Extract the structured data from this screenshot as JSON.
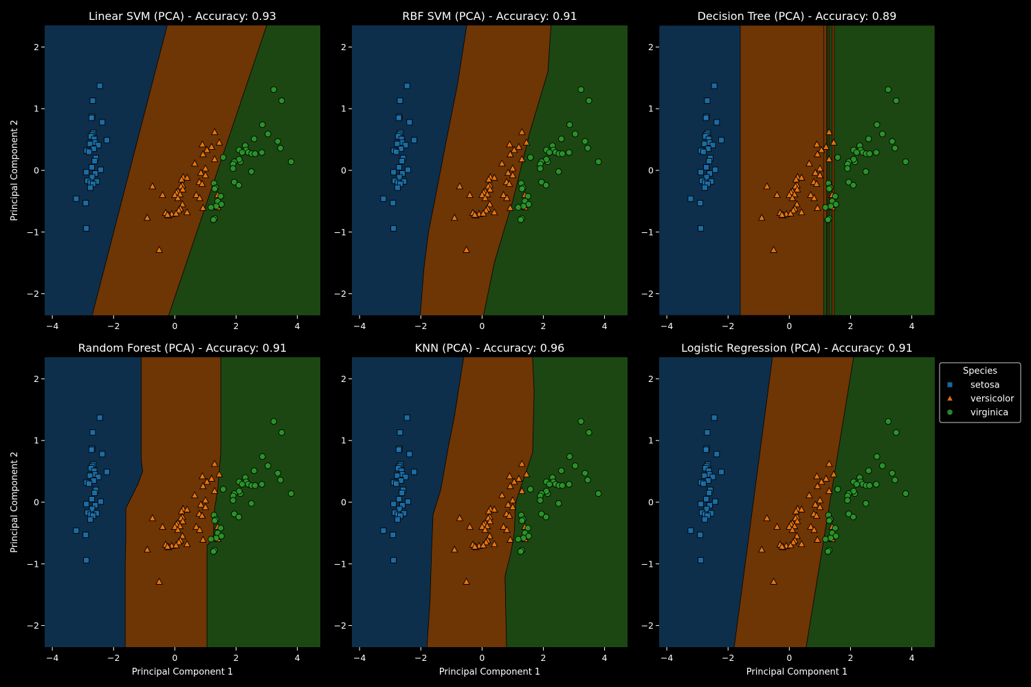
{
  "legend": {
    "title": "Species",
    "entries": [
      {
        "name": "setosa",
        "marker": "square",
        "color": "#1f77b4"
      },
      {
        "name": "versicolor",
        "marker": "triangle",
        "color": "#ff7f0e"
      },
      {
        "name": "virginica",
        "marker": "circle",
        "color": "#2ca02c"
      }
    ]
  },
  "colors": {
    "background": "#000000",
    "region_setosa": "#0d2f4b",
    "region_versicolor": "#6e3505",
    "region_virginica": "#1c4713",
    "point_setosa": "#1f77b4",
    "point_versicolor": "#ff7f0e",
    "point_virginica": "#2ca02c"
  },
  "chart_data": [
    {
      "type": "scatter",
      "title": "Linear SVM (PCA) - Accuracy: 0.93",
      "xlabel": "",
      "ylabel": "Principal Component 2",
      "xlim": [
        -4.25,
        4.75
      ],
      "ylim": [
        -2.35,
        2.35
      ],
      "xticks": [
        -4,
        -2,
        0,
        2,
        4
      ],
      "yticks": [
        -2,
        -1,
        0,
        1,
        2
      ],
      "decision_boundaries": {
        "setosa_versicolor": [
          [
            -2.7,
            -2.35
          ],
          [
            -0.25,
            2.35
          ]
        ],
        "versicolor_virginica": [
          [
            -0.2,
            -2.35
          ],
          [
            3,
            2.35
          ]
        ]
      }
    },
    {
      "type": "scatter",
      "title": "RBF SVM (PCA) - Accuracy: 0.91",
      "xlabel": "",
      "ylabel": "",
      "xlim": [
        -4.25,
        4.75
      ],
      "ylim": [
        -2.35,
        2.35
      ],
      "xticks": [
        -4,
        -2,
        0,
        2,
        4
      ],
      "yticks": [
        -2,
        -1,
        0,
        1,
        2
      ],
      "decision_boundaries": {
        "setosa_versicolor": [
          [
            -2.02,
            -2.35
          ],
          [
            -1.9,
            -1.6
          ],
          [
            -1.75,
            -1
          ],
          [
            -1.55,
            -0.5
          ],
          [
            -1.2,
            0.4
          ],
          [
            -0.8,
            1.4
          ],
          [
            -0.5,
            2.35
          ]
        ],
        "versicolor_virginica": [
          [
            0.05,
            -2.35
          ],
          [
            0.4,
            -1.5
          ],
          [
            1,
            -0.5
          ],
          [
            1.55,
            0.6
          ],
          [
            2.15,
            1.6
          ],
          [
            2.25,
            2.35
          ]
        ]
      }
    },
    {
      "type": "scatter",
      "title": "Decision Tree (PCA) - Accuracy: 0.89",
      "xlabel": "",
      "ylabel": "",
      "xlim": [
        -4.25,
        4.75
      ],
      "ylim": [
        -2.35,
        2.35
      ],
      "xticks": [
        -4,
        -2,
        0,
        2,
        4
      ],
      "yticks": [
        -2,
        -1,
        0,
        1,
        2
      ],
      "regions": [
        {
          "class": "setosa",
          "x": [
            -4.25,
            -1.6
          ],
          "y": [
            -2.35,
            2.35
          ]
        },
        {
          "class": "versicolor",
          "x": [
            -1.6,
            1.12
          ],
          "y": [
            -2.35,
            2.35
          ]
        },
        {
          "class": "virginica",
          "x": [
            1.12,
            1.22
          ],
          "y": [
            -2.35,
            -0.8
          ]
        },
        {
          "class": "versicolor",
          "x": [
            1.12,
            1.22
          ],
          "y": [
            -0.8,
            2.35
          ]
        },
        {
          "class": "virginica",
          "x": [
            1.22,
            1.26
          ],
          "y": [
            -2.35,
            2.35
          ]
        },
        {
          "class": "versicolor",
          "x": [
            1.26,
            1.3
          ],
          "y": [
            -2.35,
            2.35
          ]
        },
        {
          "class": "virginica",
          "x": [
            1.3,
            1.4
          ],
          "y": [
            -2.35,
            2.35
          ]
        },
        {
          "class": "versicolor",
          "x": [
            1.4,
            1.47
          ],
          "y": [
            -2.35,
            2.35
          ]
        },
        {
          "class": "virginica",
          "x": [
            1.47,
            4.75
          ],
          "y": [
            -2.35,
            2.35
          ]
        }
      ]
    },
    {
      "type": "scatter",
      "title": "Random Forest (PCA) - Accuracy: 0.91",
      "xlabel": "Principal Component 1",
      "ylabel": "Principal Component 2",
      "xlim": [
        -4.25,
        4.75
      ],
      "ylim": [
        -2.35,
        2.35
      ],
      "xticks": [
        -4,
        -2,
        0,
        2,
        4
      ],
      "yticks": [
        -2,
        -1,
        0,
        1,
        2
      ],
      "decision_boundaries": {
        "setosa_versicolor": [
          [
            -1.62,
            -2.35
          ],
          [
            -1.62,
            -1
          ],
          [
            -1.6,
            -0.6
          ],
          [
            -1.6,
            -0.1
          ],
          [
            -1.4,
            0.1
          ],
          [
            -1.2,
            0.3
          ],
          [
            -1.05,
            0.5
          ],
          [
            -1.1,
            0.7
          ],
          [
            -1.1,
            1.6
          ],
          [
            -1.1,
            2.35
          ]
        ],
        "versicolor_virginica": [
          [
            1.05,
            -2.35
          ],
          [
            1.05,
            -0.7
          ],
          [
            1.25,
            -0.6
          ],
          [
            1.3,
            -0.1
          ],
          [
            1.4,
            0.2
          ],
          [
            1.45,
            0.5
          ],
          [
            1.5,
            0.8
          ],
          [
            1.5,
            2.35
          ]
        ]
      }
    },
    {
      "type": "scatter",
      "title": "KNN (PCA) - Accuracy: 0.96",
      "xlabel": "Principal Component 1",
      "ylabel": "",
      "xlim": [
        -4.25,
        4.75
      ],
      "ylim": [
        -2.35,
        2.35
      ],
      "xticks": [
        -4,
        -2,
        0,
        2,
        4
      ],
      "yticks": [
        -2,
        -1,
        0,
        1,
        2
      ],
      "decision_boundaries": {
        "setosa_versicolor": [
          [
            -1.8,
            -2.35
          ],
          [
            -1.7,
            -1.6
          ],
          [
            -1.65,
            -0.8
          ],
          [
            -1.6,
            -0.2
          ],
          [
            -1.35,
            0.2
          ],
          [
            -1.1,
            0.9
          ],
          [
            -0.9,
            1.4
          ],
          [
            -0.6,
            2.35
          ]
        ],
        "versicolor_virginica": [
          [
            0.8,
            -2.35
          ],
          [
            0.75,
            -1.2
          ],
          [
            0.95,
            -0.8
          ],
          [
            1.05,
            -0.5
          ],
          [
            1.1,
            0
          ],
          [
            1.3,
            0.3
          ],
          [
            1.65,
            0.8
          ],
          [
            1.7,
            1.8
          ],
          [
            1.65,
            2.35
          ]
        ]
      }
    },
    {
      "type": "scatter",
      "title": "Logistic Regression (PCA) - Accuracy: 0.91",
      "xlabel": "Principal Component 1",
      "ylabel": "",
      "xlim": [
        -4.25,
        4.75
      ],
      "ylim": [
        -2.35,
        2.35
      ],
      "xticks": [
        -4,
        -2,
        0,
        2,
        4
      ],
      "yticks": [
        -2,
        -1,
        0,
        1,
        2
      ],
      "decision_boundaries": {
        "setosa_versicolor": [
          [
            -1.8,
            -2.35
          ],
          [
            -0.55,
            2.35
          ]
        ],
        "versicolor_virginica": [
          [
            0.55,
            -2.35
          ],
          [
            2.1,
            2.35
          ]
        ]
      }
    }
  ],
  "points": {
    "setosa": [
      [
        -2.45,
        1.37
      ],
      [
        -2.68,
        1.13
      ],
      [
        -2.7,
        0.87
      ],
      [
        -2.72,
        0.85
      ],
      [
        -2.37,
        0.78
      ],
      [
        -2.66,
        0.61
      ],
      [
        -2.7,
        0.58
      ],
      [
        -2.74,
        0.55
      ],
      [
        -2.63,
        0.51
      ],
      [
        -2.22,
        0.49
      ],
      [
        -2.61,
        0.45
      ],
      [
        -2.77,
        0.43
      ],
      [
        -2.5,
        0.41
      ],
      [
        -2.65,
        0.35
      ],
      [
        -2.88,
        0.32
      ],
      [
        -2.8,
        0.3
      ],
      [
        -2.58,
        0.2
      ],
      [
        -2.62,
        0.15
      ],
      [
        -2.71,
        0.05
      ],
      [
        -2.42,
        0.01
      ],
      [
        -2.89,
        -0.03
      ],
      [
        -2.6,
        -0.05
      ],
      [
        -2.7,
        -0.11
      ],
      [
        -2.85,
        -0.17
      ],
      [
        -2.55,
        -0.18
      ],
      [
        -2.75,
        -0.2
      ],
      [
        -2.67,
        -0.22
      ],
      [
        -2.76,
        -0.28
      ],
      [
        -3.22,
        -0.46
      ],
      [
        -2.91,
        -0.53
      ],
      [
        -2.89,
        -0.94
      ]
    ],
    "versicolor": [
      [
        1.3,
        0.62
      ],
      [
        1.45,
        0.45
      ],
      [
        0.9,
        0.42
      ],
      [
        1.2,
        0.38
      ],
      [
        1.05,
        0.33
      ],
      [
        0.92,
        0.26
      ],
      [
        1.3,
        0.18
      ],
      [
        0.65,
        0.11
      ],
      [
        1.0,
        0.03
      ],
      [
        0.85,
        -0.04
      ],
      [
        1.0,
        -0.08
      ],
      [
        0.27,
        -0.11
      ],
      [
        0.4,
        -0.12
      ],
      [
        0.22,
        -0.15
      ],
      [
        0.8,
        -0.19
      ],
      [
        0.89,
        -0.22
      ],
      [
        0.25,
        -0.24
      ],
      [
        -0.73,
        -0.26
      ],
      [
        0.2,
        -0.26
      ],
      [
        0.26,
        -0.31
      ],
      [
        0.1,
        -0.34
      ],
      [
        0.05,
        -0.36
      ],
      [
        0.17,
        -0.39
      ],
      [
        0.7,
        -0.4
      ],
      [
        -0.4,
        -0.4
      ],
      [
        1.4,
        -0.4
      ],
      [
        0.0,
        -0.4
      ],
      [
        0.1,
        -0.45
      ],
      [
        0.81,
        -0.45
      ],
      [
        0.25,
        -0.55
      ],
      [
        0.92,
        -0.61
      ],
      [
        0.18,
        -0.62
      ],
      [
        1.4,
        -0.6
      ],
      [
        -0.9,
        -0.77
      ],
      [
        0.13,
        -0.65
      ],
      [
        0.4,
        -0.68
      ],
      [
        -0.3,
        -0.69
      ],
      [
        -0.1,
        -0.71
      ],
      [
        0.04,
        -0.7
      ],
      [
        -0.2,
        -0.73
      ],
      [
        -0.24,
        -0.72
      ],
      [
        -0.51,
        -1.29
      ]
    ],
    "virginica": [
      [
        3.23,
        1.31
      ],
      [
        3.49,
        1.13
      ],
      [
        2.86,
        0.74
      ],
      [
        3.04,
        0.59
      ],
      [
        2.59,
        0.51
      ],
      [
        3.36,
        0.47
      ],
      [
        2.3,
        0.4
      ],
      [
        3.45,
        0.36
      ],
      [
        2.1,
        0.33
      ],
      [
        2.33,
        0.33
      ],
      [
        2.2,
        0.29
      ],
      [
        2.4,
        0.29
      ],
      [
        2.51,
        0.27
      ],
      [
        2.62,
        0.27
      ],
      [
        2.84,
        0.29
      ],
      [
        1.58,
        0.21
      ],
      [
        2.14,
        0.14
      ],
      [
        2.1,
        0.18
      ],
      [
        1.94,
        0.14
      ],
      [
        1.9,
        0.1
      ],
      [
        3.8,
        0.14
      ],
      [
        1.9,
        0.03
      ],
      [
        2.5,
        -0.02
      ],
      [
        1.94,
        -0.19
      ],
      [
        1.28,
        -0.21
      ],
      [
        2.09,
        -0.24
      ],
      [
        1.34,
        -0.28
      ],
      [
        1.3,
        -0.3
      ],
      [
        1.5,
        -0.42
      ],
      [
        1.4,
        -0.5
      ],
      [
        1.52,
        -0.55
      ],
      [
        1.35,
        -0.58
      ],
      [
        1.18,
        -0.6
      ],
      [
        1.3,
        -0.78
      ],
      [
        1.26,
        -0.8
      ]
    ]
  }
}
